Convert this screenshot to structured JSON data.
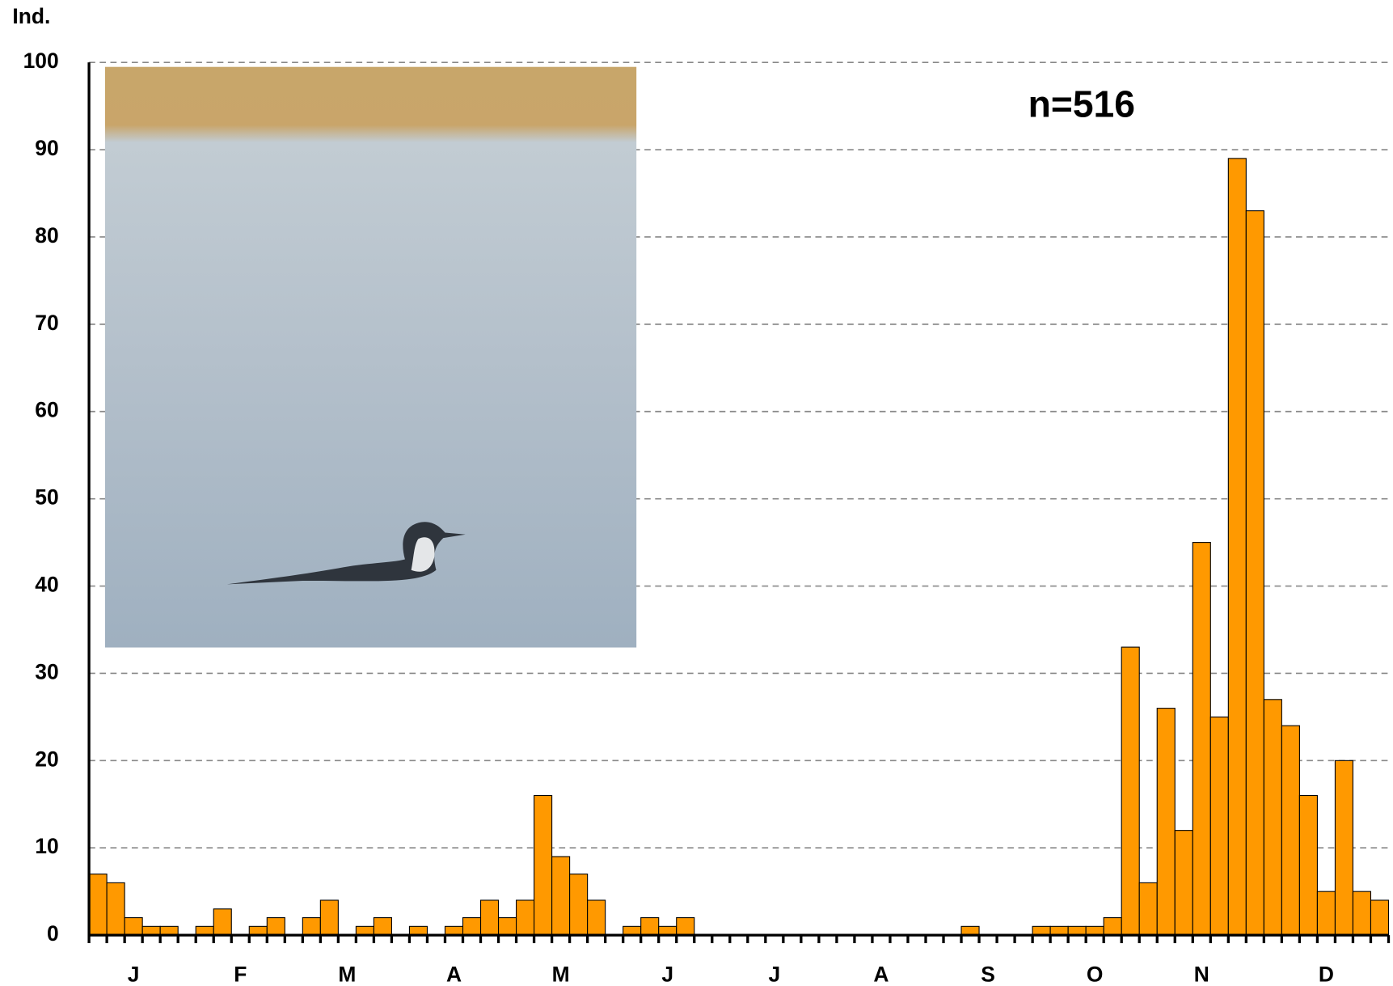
{
  "chart_data": {
    "type": "bar",
    "y_label": "Ind.",
    "annotation": "n=516",
    "categories": [
      null,
      null,
      "J",
      null,
      null,
      null,
      null,
      null,
      "F",
      null,
      null,
      null,
      null,
      null,
      "M",
      null,
      null,
      null,
      null,
      null,
      "A",
      null,
      null,
      null,
      null,
      null,
      "M",
      null,
      null,
      null,
      null,
      null,
      "J",
      null,
      null,
      null,
      null,
      null,
      "J",
      null,
      null,
      null,
      null,
      null,
      "A",
      null,
      null,
      null,
      null,
      null,
      "S",
      null,
      null,
      null,
      null,
      null,
      "O",
      null,
      null,
      null,
      null,
      null,
      "N",
      null,
      null,
      null,
      null,
      null,
      null,
      "D",
      null,
      null,
      null
    ],
    "values": [
      7,
      6,
      2,
      1,
      1,
      0,
      1,
      3,
      0,
      1,
      2,
      0,
      2,
      4,
      0,
      1,
      2,
      0,
      1,
      0,
      1,
      2,
      4,
      2,
      4,
      16,
      9,
      7,
      4,
      0,
      1,
      2,
      1,
      2,
      0,
      0,
      0,
      0,
      0,
      0,
      0,
      0,
      0,
      0,
      0,
      0,
      0,
      0,
      0,
      1,
      0,
      0,
      0,
      1,
      1,
      1,
      1,
      2,
      33,
      6,
      26,
      12,
      45,
      25,
      89,
      83,
      27,
      24,
      16,
      5,
      20,
      5,
      4
    ],
    "color": "#ff9900",
    "ylim": [
      0,
      100
    ],
    "yticks": [
      0,
      10,
      20,
      30,
      40,
      50,
      60,
      70,
      80,
      90,
      100
    ],
    "grid": true
  }
}
